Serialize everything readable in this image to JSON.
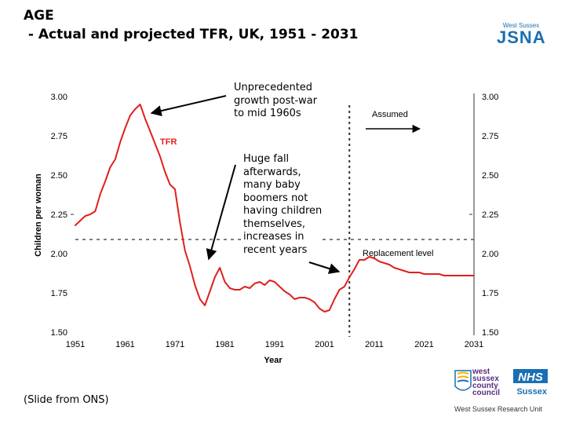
{
  "slide": {
    "title_line1": "AGE",
    "title_line2": " - Actual and projected TFR, UK, 1951 - 2031",
    "source": "(Slide from ONS)"
  },
  "branding": {
    "jsna_small": "West Sussex",
    "jsna_big": "JSNA",
    "council_lines": [
      "west",
      "sussex",
      "county",
      "council"
    ],
    "nhs": "NHS",
    "nhs_sub": "Sussex",
    "unit": "West Sussex Research Unit"
  },
  "annotations": {
    "peak": [
      "Unprecedented",
      "growth post-war",
      "to mid 1960s"
    ],
    "fall": [
      "Huge fall",
      "afterwards,",
      "many baby",
      "boomers not",
      "having children",
      "themselves,",
      "increases in",
      "recent years"
    ],
    "assumed": "Assumed",
    "replacement": "Replacement level",
    "series_label": "TFR"
  },
  "colors": {
    "line": "#e0201c",
    "axis": "#333333",
    "dashed": "#333333",
    "brand_blue": "#1a6fb4",
    "council_purple": "#5a2d82"
  },
  "chart_data": {
    "type": "line",
    "title": "AGE - Actual and projected TFR, UK, 1951 - 2031",
    "xlabel": "Year",
    "ylabel": "Children per woman",
    "xlim": [
      1951,
      2031
    ],
    "ylim": [
      1.5,
      3.0
    ],
    "x_ticks": [
      1951,
      1961,
      1971,
      1981,
      1991,
      2001,
      2011,
      2021,
      2031
    ],
    "y_ticks": [
      "1.50",
      "1.75",
      "2.00",
      "2.25",
      "2.50",
      "2.75",
      "3.00"
    ],
    "y_tick_values": [
      1.5,
      1.75,
      2.0,
      2.25,
      2.5,
      2.75,
      3.0
    ],
    "replacement_level": 2.09,
    "projection_start": 2006,
    "series": [
      {
        "name": "TFR",
        "x": [
          1951,
          1952,
          1953,
          1954,
          1955,
          1956,
          1957,
          1958,
          1959,
          1960,
          1961,
          1962,
          1963,
          1964,
          1965,
          1966,
          1967,
          1968,
          1969,
          1970,
          1971,
          1972,
          1973,
          1974,
          1975,
          1976,
          1977,
          1978,
          1979,
          1980,
          1981,
          1982,
          1983,
          1984,
          1985,
          1986,
          1987,
          1988,
          1989,
          1990,
          1991,
          1992,
          1993,
          1994,
          1995,
          1996,
          1997,
          1998,
          1999,
          2000,
          2001,
          2002,
          2003,
          2004,
          2005,
          2006,
          2007,
          2008,
          2009,
          2010,
          2011,
          2012,
          2013,
          2014,
          2015,
          2016,
          2017,
          2018,
          2019,
          2020,
          2021,
          2022,
          2023,
          2024,
          2025,
          2026,
          2027,
          2028,
          2029,
          2030,
          2031
        ],
        "values": [
          2.18,
          2.21,
          2.24,
          2.25,
          2.27,
          2.38,
          2.46,
          2.55,
          2.6,
          2.71,
          2.8,
          2.88,
          2.92,
          2.95,
          2.86,
          2.78,
          2.7,
          2.62,
          2.52,
          2.44,
          2.41,
          2.2,
          2.02,
          1.92,
          1.8,
          1.71,
          1.67,
          1.76,
          1.85,
          1.91,
          1.82,
          1.78,
          1.77,
          1.77,
          1.79,
          1.78,
          1.81,
          1.82,
          1.8,
          1.83,
          1.82,
          1.79,
          1.76,
          1.74,
          1.71,
          1.72,
          1.72,
          1.71,
          1.69,
          1.65,
          1.63,
          1.64,
          1.71,
          1.77,
          1.79,
          1.85,
          1.9,
          1.96,
          1.96,
          1.98,
          1.97,
          1.95,
          1.94,
          1.93,
          1.91,
          1.9,
          1.89,
          1.88,
          1.88,
          1.88,
          1.87,
          1.87,
          1.87,
          1.87,
          1.86,
          1.86,
          1.86,
          1.86,
          1.86,
          1.86,
          1.86
        ]
      }
    ]
  }
}
